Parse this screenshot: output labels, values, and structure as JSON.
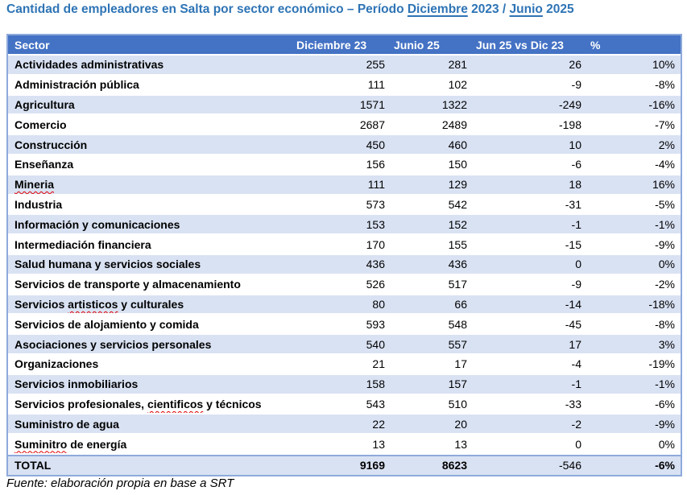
{
  "title": {
    "part1": "Cantidad de empleadores en Salta por sector económico – Período ",
    "diciembre": "Diciembre",
    "part2": " 2023 / ",
    "junio": "Junio",
    "part3": " 2025"
  },
  "table": {
    "columns": [
      {
        "label": "Sector"
      },
      {
        "label": "Diciembre 23"
      },
      {
        "label": "Junio 25"
      },
      {
        "label": "Jun 25 vs Dic 23"
      },
      {
        "label": "%"
      }
    ],
    "rows": [
      {
        "sector": "Actividades administrativas",
        "dic": "255",
        "jun": "281",
        "diff": "26",
        "pct": "10%"
      },
      {
        "sector": "Administración pública",
        "dic": "111",
        "jun": "102",
        "diff": "-9",
        "pct": "-8%"
      },
      {
        "sector": "Agricultura",
        "dic": "1571",
        "jun": "1322",
        "diff": "-249",
        "pct": "-16%"
      },
      {
        "sector": "Comercio",
        "dic": "2687",
        "jun": "2489",
        "diff": "-198",
        "pct": "-7%"
      },
      {
        "sector": "Construcción",
        "dic": "450",
        "jun": "460",
        "diff": "10",
        "pct": "2%"
      },
      {
        "sector": "Enseñanza",
        "dic": "156",
        "jun": "150",
        "diff": "-6",
        "pct": "-4%"
      },
      {
        "sector": "Mineria",
        "dic": "111",
        "jun": "129",
        "diff": "18",
        "pct": "16%",
        "misspelled": [
          "Mineria"
        ]
      },
      {
        "sector": "Industria",
        "dic": "573",
        "jun": "542",
        "diff": "-31",
        "pct": "-5%"
      },
      {
        "sector": "Información y comunicaciones",
        "dic": "153",
        "jun": "152",
        "diff": "-1",
        "pct": "-1%"
      },
      {
        "sector": "Intermediación financiera",
        "dic": "170",
        "jun": "155",
        "diff": "-15",
        "pct": "-9%"
      },
      {
        "sector": "Salud humana y servicios sociales",
        "dic": "436",
        "jun": "436",
        "diff": "0",
        "pct": "0%"
      },
      {
        "sector": "Servicios de transporte y almacenamiento",
        "dic": "526",
        "jun": "517",
        "diff": "-9",
        "pct": "-2%"
      },
      {
        "sector": "Servicios artisticos y culturales",
        "dic": "80",
        "jun": "66",
        "diff": "-14",
        "pct": "-18%",
        "misspelled": [
          "artisticos"
        ]
      },
      {
        "sector": "Servicios de alojamiento y comida",
        "dic": "593",
        "jun": "548",
        "diff": "-45",
        "pct": "-8%"
      },
      {
        "sector": "Asociaciones y servicios personales",
        "dic": "540",
        "jun": "557",
        "diff": "17",
        "pct": "3%"
      },
      {
        "sector": "Organizaciones",
        "dic": "21",
        "jun": "17",
        "diff": "-4",
        "pct": "-19%"
      },
      {
        "sector": "Servicios inmobiliarios",
        "dic": "158",
        "jun": "157",
        "diff": "-1",
        "pct": "-1%"
      },
      {
        "sector": "Servicios profesionales, cientificos y técnicos",
        "dic": "543",
        "jun": "510",
        "diff": "-33",
        "pct": "-6%",
        "misspelled": [
          "cientificos"
        ]
      },
      {
        "sector": "Suministro de agua",
        "dic": "22",
        "jun": "20",
        "diff": "-2",
        "pct": "-9%"
      },
      {
        "sector": "Suminitro de energía",
        "dic": "13",
        "jun": "13",
        "diff": "0",
        "pct": "0%",
        "misspelled": [
          "Suminitro"
        ]
      }
    ],
    "total_row": {
      "sector": "TOTAL",
      "dic": "9169",
      "jun": "8623",
      "diff": "-546",
      "pct": "-6%"
    }
  },
  "footer": {
    "source": "Fuente: elaboración propia en base a SRT"
  },
  "colors": {
    "title_text": "#2E74B5",
    "header_bg": "#4472C4",
    "header_text": "#FFFFFF",
    "band_row_bg": "#D9E2F3",
    "table_border": "#8EAADB",
    "spellcheck_squiggle": "#E00000"
  }
}
